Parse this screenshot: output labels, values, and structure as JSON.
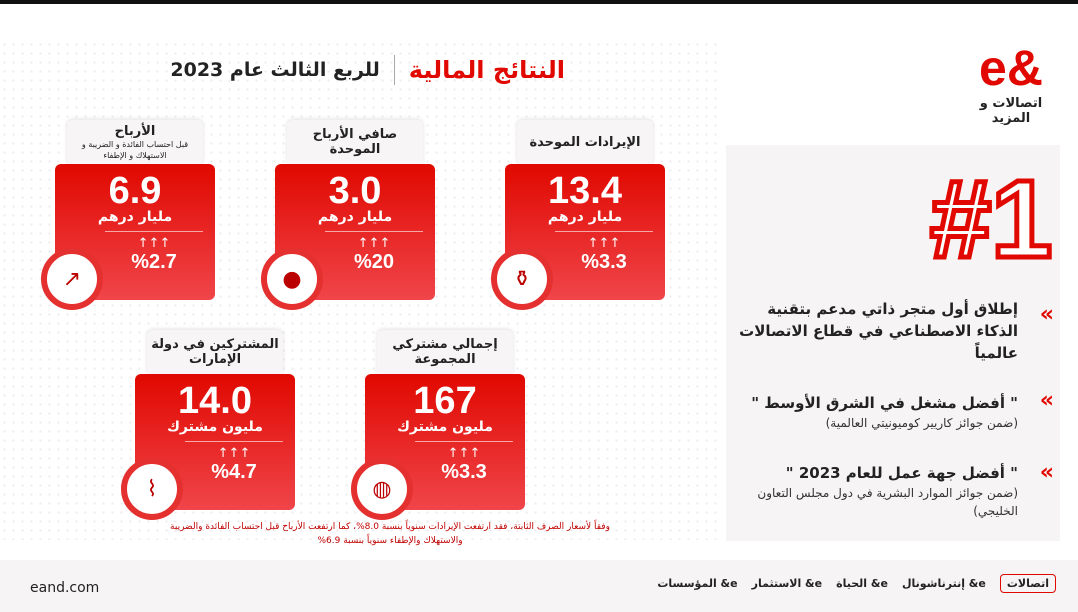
{
  "title": {
    "main": "النتائج المالية",
    "sub": "للربع الثالث  عام 2023"
  },
  "logo": {
    "mark": "e&",
    "name": "اتصالات و المزيد"
  },
  "highlight": {
    "rank": "#1"
  },
  "achievements": [
    {
      "headline": "إطلاق أول متجر ذاتي مدعم بتقنية الذكاء الاصطناعي في قطاع الاتصالات عالمياً",
      "sub": ""
    },
    {
      "headline": "\" أفضل مشغل في الشرق الأوسط \"",
      "sub": "(ضمن جوائز كاريير كوميونيتي العالمية)"
    },
    {
      "headline": "\" أفضل جهة عمل للعام 2023 \"",
      "sub": "(ضمن جوائز الموارد البشرية في دول مجلس التعاون الخليجي)"
    }
  ],
  "cards": [
    {
      "label": "الأرباح",
      "note": "قبل احتساب الفائدة و الضريبة و الاستهلاك و الإطفاء",
      "value": "6.9",
      "unit": "مليار درهم",
      "arrows": "↑↑↑",
      "change": "%2.7",
      "icon": "growth-chart-icon"
    },
    {
      "label": "صافي الأرباح الموحدة",
      "note": "",
      "value": "3.0",
      "unit": "مليار درهم",
      "arrows": "↑↑↑",
      "change": "%20",
      "icon": "hand-coins-icon"
    },
    {
      "label": "الإيرادات الموحدة",
      "note": "",
      "value": "13.4",
      "unit": "مليار درهم",
      "arrows": "↑↑↑",
      "change": "%3.3",
      "icon": "money-bag-icon"
    },
    {
      "label": "المشتركين في دولة الإمارات",
      "note": "",
      "value": "14.0",
      "unit": "مليون مشترك",
      "arrows": "↑↑↑",
      "change": "%4.7",
      "icon": "uae-map-icon"
    },
    {
      "label": "إجمالي مشتركي المجموعة",
      "note": "",
      "value": "167",
      "unit": "مليون مشترك",
      "arrows": "↑↑↑",
      "change": "%3.3",
      "icon": "globe-network-icon"
    }
  ],
  "footnote": "وفقاً لأسعار الصرف الثابتة، فقد ارتفعت الإيرادات سنوياً بنسبة 8.0%، كما ارتفعت الأرباح قبل احتساب الفائدة والضريبة والاستهلاك والإطفاء سنوياً بنسبة 6.9%",
  "footer": {
    "site": "eand.com",
    "brands": [
      "اتصالات",
      "e& إنترناشونال",
      "e& الحياة",
      "e& الاستثمار",
      "e& المؤسسات"
    ]
  },
  "colors": {
    "accent": "#e00800"
  }
}
